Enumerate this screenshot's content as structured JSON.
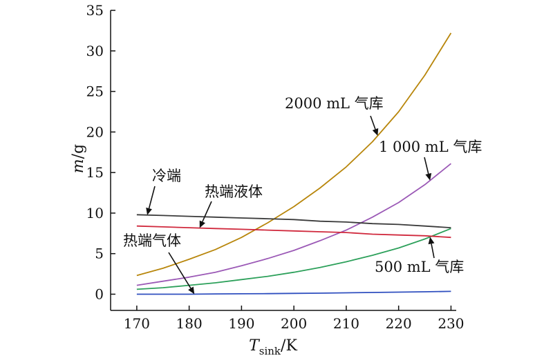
{
  "chart_data": {
    "type": "line",
    "title": "",
    "xlabel_main": "T",
    "xlabel_sub": "sink",
    "xlabel_unit": "/K",
    "ylabel_main": "m",
    "ylabel_unit": "/g",
    "xlim": [
      165,
      231
    ],
    "ylim": [
      -2,
      35
    ],
    "xticks": [
      170,
      180,
      190,
      200,
      210,
      220,
      230
    ],
    "yticks": [
      0,
      5,
      10,
      15,
      20,
      25,
      30,
      35
    ],
    "grid": false,
    "legend": "none",
    "x": [
      170,
      175,
      180,
      185,
      190,
      195,
      200,
      205,
      210,
      215,
      220,
      225,
      230
    ],
    "series": [
      {
        "name": "2000 mL 气库",
        "color": "#b8860b",
        "values": [
          2.3,
          3.2,
          4.3,
          5.5,
          7.0,
          8.8,
          10.8,
          13.1,
          15.7,
          18.8,
          22.5,
          27.0,
          32.2
        ]
      },
      {
        "name": "1 000 mL 气库",
        "color": "#9b59b6",
        "values": [
          1.1,
          1.6,
          2.1,
          2.7,
          3.5,
          4.4,
          5.4,
          6.6,
          7.9,
          9.5,
          11.3,
          13.5,
          16.1
        ]
      },
      {
        "name": "500 mL 气库",
        "color": "#2ca05a",
        "values": [
          0.6,
          0.8,
          1.1,
          1.4,
          1.8,
          2.2,
          2.7,
          3.3,
          4.0,
          4.8,
          5.7,
          6.8,
          8.1
        ]
      },
      {
        "name": "冷端",
        "color": "#3a3a3a",
        "values": [
          9.8,
          9.7,
          9.6,
          9.5,
          9.4,
          9.3,
          9.2,
          9.0,
          8.9,
          8.7,
          8.6,
          8.4,
          8.2
        ]
      },
      {
        "name": "热端液体",
        "color": "#d0283c",
        "values": [
          8.4,
          8.3,
          8.2,
          8.1,
          8.0,
          7.9,
          7.8,
          7.7,
          7.6,
          7.4,
          7.3,
          7.2,
          7.0
        ]
      },
      {
        "name": "热端气体",
        "color": "#2f4fbf",
        "values": [
          0.0,
          0.0,
          0.0,
          0.03,
          0.05,
          0.07,
          0.1,
          0.13,
          0.17,
          0.21,
          0.25,
          0.3,
          0.35
        ]
      }
    ],
    "annotations": [
      {
        "text": "2000 mL 气库",
        "series": 0,
        "at_x": 216
      },
      {
        "text": "1 000 mL 气库",
        "series": 1,
        "at_x": 226
      },
      {
        "text": "500 mL 气库",
        "series": 2,
        "at_x": 226
      },
      {
        "text": "冷端",
        "series": 3,
        "at_x": 172
      },
      {
        "text": "热端液体",
        "series": 4,
        "at_x": 182
      },
      {
        "text": "热端气体",
        "series": 5,
        "at_x": 181
      }
    ]
  }
}
